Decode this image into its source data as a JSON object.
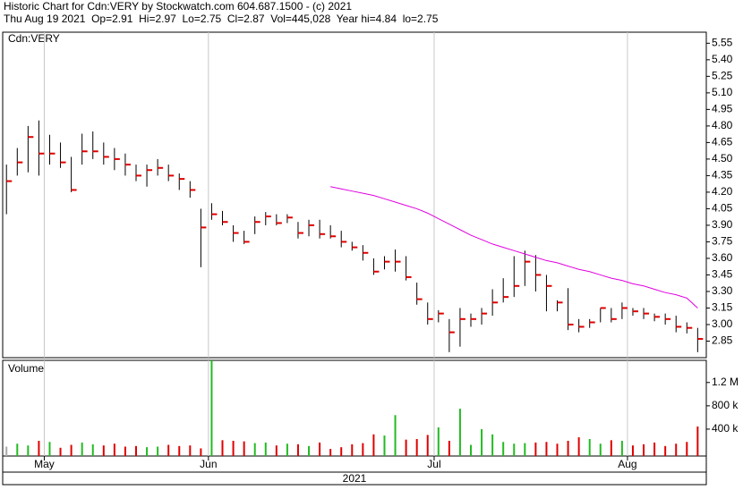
{
  "chart_data": {
    "type": "ohlc",
    "title": "Historic Chart for Cdn:VERY by Stockwatch.com 604.687.1500 - (c) 2021",
    "subtitle": "Thu Aug 19 2021  Op=2.91  Hi=2.97  Lo=2.75  Cl=2.87  Vol=445,028  Year hi=4.84  lo=2.75",
    "symbol": "Cdn:VERY",
    "year": "2021",
    "xlim": [
      -0.35,
      64.8
    ],
    "xticks": [
      {
        "value": 3.5,
        "label": "May"
      },
      {
        "value": 18.7,
        "label": "Jun"
      },
      {
        "value": 39.6,
        "label": "Jul"
      },
      {
        "value": 57.5,
        "label": "Aug"
      }
    ],
    "ylim": [
      2.7,
      5.65
    ],
    "yticks": [
      2.85,
      {
        "value": 3,
        "label": "3.00"
      },
      3.15,
      {
        "value": 3.3,
        "label": "3.30"
      },
      3.45,
      {
        "value": 3.6,
        "label": "3.60"
      },
      3.75,
      {
        "value": 3.9,
        "label": "3.90"
      },
      4.05,
      {
        "value": 4.2,
        "label": "4.20"
      },
      4.35,
      {
        "value": 4.5,
        "label": "4.50"
      },
      4.65,
      {
        "value": 4.8,
        "label": "4.80"
      },
      4.95,
      {
        "value": 5.1,
        "label": "5.10"
      },
      5.25,
      {
        "value": 5.4,
        "label": "5.40"
      },
      5.55
    ],
    "bar_color": "#000000",
    "close_color": "#e00000",
    "highs": [
      4.45,
      4.6,
      4.8,
      4.85,
      4.72,
      4.65,
      4.52,
      4.73,
      4.75,
      4.65,
      4.6,
      4.55,
      4.45,
      4.45,
      4.5,
      4.45,
      4.37,
      4.3,
      4.05,
      4.1,
      4.03,
      3.9,
      3.85,
      3.98,
      4.02,
      4.0,
      4.0,
      3.93,
      3.95,
      3.95,
      3.9,
      3.85,
      3.75,
      3.72,
      3.6,
      3.62,
      3.68,
      3.62,
      3.38,
      3.2,
      3.13,
      3.05,
      3.15,
      3.1,
      3.15,
      3.32,
      3.42,
      3.62,
      3.67,
      3.63,
      3.45,
      3.22,
      3.33,
      3.05,
      3.05,
      3.15,
      3.15,
      3.2,
      3.15,
      3.15,
      3.1,
      3.1,
      3.08,
      3.02,
      2.97
    ],
    "lows": [
      4.0,
      4.35,
      4.38,
      4.35,
      4.45,
      4.42,
      4.2,
      4.45,
      4.5,
      4.45,
      4.4,
      4.35,
      4.3,
      4.25,
      4.35,
      4.3,
      4.22,
      4.15,
      3.52,
      3.95,
      3.9,
      3.75,
      3.73,
      3.82,
      3.9,
      3.9,
      3.92,
      3.78,
      3.8,
      3.78,
      3.78,
      3.7,
      3.67,
      3.58,
      3.45,
      3.5,
      3.48,
      3.4,
      3.18,
      3.0,
      3.02,
      2.75,
      2.8,
      2.98,
      3.0,
      3.08,
      3.2,
      3.25,
      3.35,
      3.3,
      3.12,
      3.12,
      2.95,
      2.93,
      2.97,
      3.02,
      3.02,
      3.05,
      3.08,
      3.05,
      3.03,
      3.0,
      2.93,
      2.92,
      2.75
    ],
    "closes": [
      4.3,
      4.47,
      4.7,
      4.55,
      4.55,
      4.47,
      4.22,
      4.57,
      4.57,
      4.52,
      4.5,
      4.45,
      4.35,
      4.4,
      4.42,
      4.35,
      4.32,
      4.22,
      3.88,
      4.0,
      3.93,
      3.83,
      3.75,
      3.93,
      3.98,
      3.92,
      3.97,
      3.83,
      3.9,
      3.82,
      3.8,
      3.75,
      3.7,
      3.65,
      3.48,
      3.57,
      3.57,
      3.43,
      3.23,
      3.05,
      3.1,
      2.93,
      3.05,
      3.05,
      3.1,
      3.2,
      3.25,
      3.35,
      3.57,
      3.45,
      3.35,
      3.2,
      3.0,
      2.98,
      3.02,
      3.15,
      3.05,
      3.15,
      3.12,
      3.1,
      3.07,
      3.05,
      2.98,
      2.97,
      2.87
    ],
    "moving_average": {
      "color": "#e000e0",
      "values": [
        null,
        null,
        null,
        null,
        null,
        null,
        null,
        null,
        null,
        null,
        null,
        null,
        null,
        null,
        null,
        null,
        null,
        null,
        null,
        null,
        null,
        null,
        null,
        null,
        null,
        null,
        null,
        null,
        null,
        null,
        4.25,
        4.23,
        4.21,
        4.19,
        4.17,
        4.14,
        4.11,
        4.08,
        4.05,
        4.01,
        3.96,
        3.91,
        3.86,
        3.81,
        3.77,
        3.73,
        3.7,
        3.67,
        3.64,
        3.61,
        3.58,
        3.56,
        3.53,
        3.5,
        3.48,
        3.45,
        3.42,
        3.4,
        3.37,
        3.35,
        3.32,
        3.29,
        3.27,
        3.24,
        3.15
      ]
    },
    "volume": {
      "name": "Volume",
      "ylim": [
        0,
        1580000
      ],
      "yticks": [
        {
          "value": 400000,
          "label": "400 k"
        },
        {
          "value": 800000,
          "label": "800 k"
        },
        {
          "value": 1200000,
          "label": "1.2 M"
        }
      ],
      "up_color": "#22bb22",
      "down_color": "#e00000",
      "neutral_color": "#aaaaaa",
      "values": [
        100000,
        150000,
        120000,
        200000,
        180000,
        80000,
        130000,
        170000,
        140000,
        120000,
        150000,
        100000,
        110000,
        90000,
        100000,
        130000,
        110000,
        120000,
        70000,
        1580000,
        210000,
        200000,
        190000,
        160000,
        170000,
        120000,
        150000,
        140000,
        110000,
        170000,
        60000,
        90000,
        140000,
        160000,
        310000,
        290000,
        640000,
        220000,
        230000,
        300000,
        430000,
        200000,
        750000,
        130000,
        400000,
        310000,
        180000,
        150000,
        160000,
        170000,
        180000,
        150000,
        200000,
        260000,
        230000,
        150000,
        210000,
        200000,
        120000,
        140000,
        170000,
        110000,
        150000,
        180000,
        445028
      ]
    }
  }
}
